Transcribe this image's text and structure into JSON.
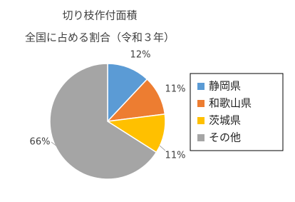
{
  "chart_data": {
    "type": "pie",
    "title": "切り枝作付面積",
    "subtitle": "全国に占める割合（令和３年）",
    "categories": [
      "静岡県",
      "和歌山県",
      "茨城県",
      "その他"
    ],
    "values": [
      12,
      11,
      11,
      66
    ],
    "value_labels": [
      "12%",
      "11%",
      "11%",
      "66%"
    ],
    "colors": [
      "#5b9bd5",
      "#ed7d31",
      "#ffc000",
      "#a5a5a5"
    ],
    "legend": "right"
  }
}
